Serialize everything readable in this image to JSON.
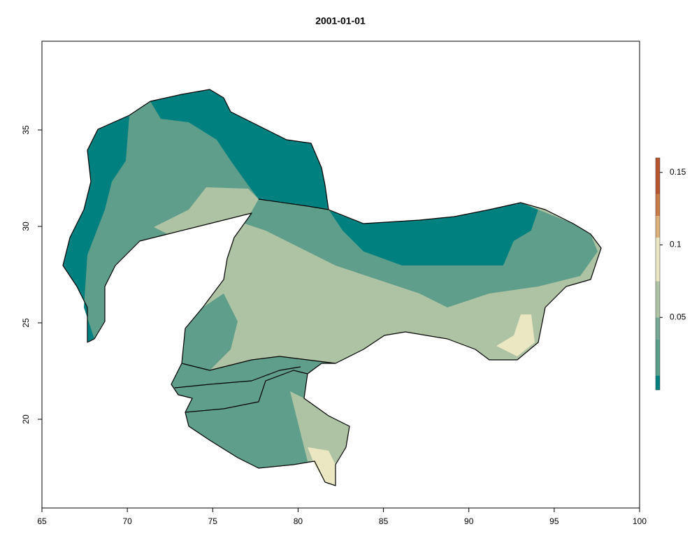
{
  "chart_data": {
    "type": "raster",
    "title": "2001-01-01",
    "xlim": [
      65,
      100
    ],
    "xticks": [
      65,
      70,
      75,
      80,
      85,
      90,
      95,
      100
    ],
    "ylim": [
      15.4,
      39.6
    ],
    "yticks": [
      20,
      25,
      30,
      35
    ],
    "colorbar": {
      "lim": [
        0,
        0.16
      ],
      "ticks": [
        0.05,
        0.1,
        0.15
      ],
      "breaks": [
        0,
        0.01,
        0.035,
        0.05,
        0.075,
        0.105,
        0.12,
        0.135,
        0.16
      ],
      "colors": [
        "#00807f",
        "#5a9e8a",
        "#76a895",
        "#aec2a4",
        "#ebe7c2",
        "#dbb07a",
        "#c97b48",
        "#b85530"
      ]
    }
  }
}
